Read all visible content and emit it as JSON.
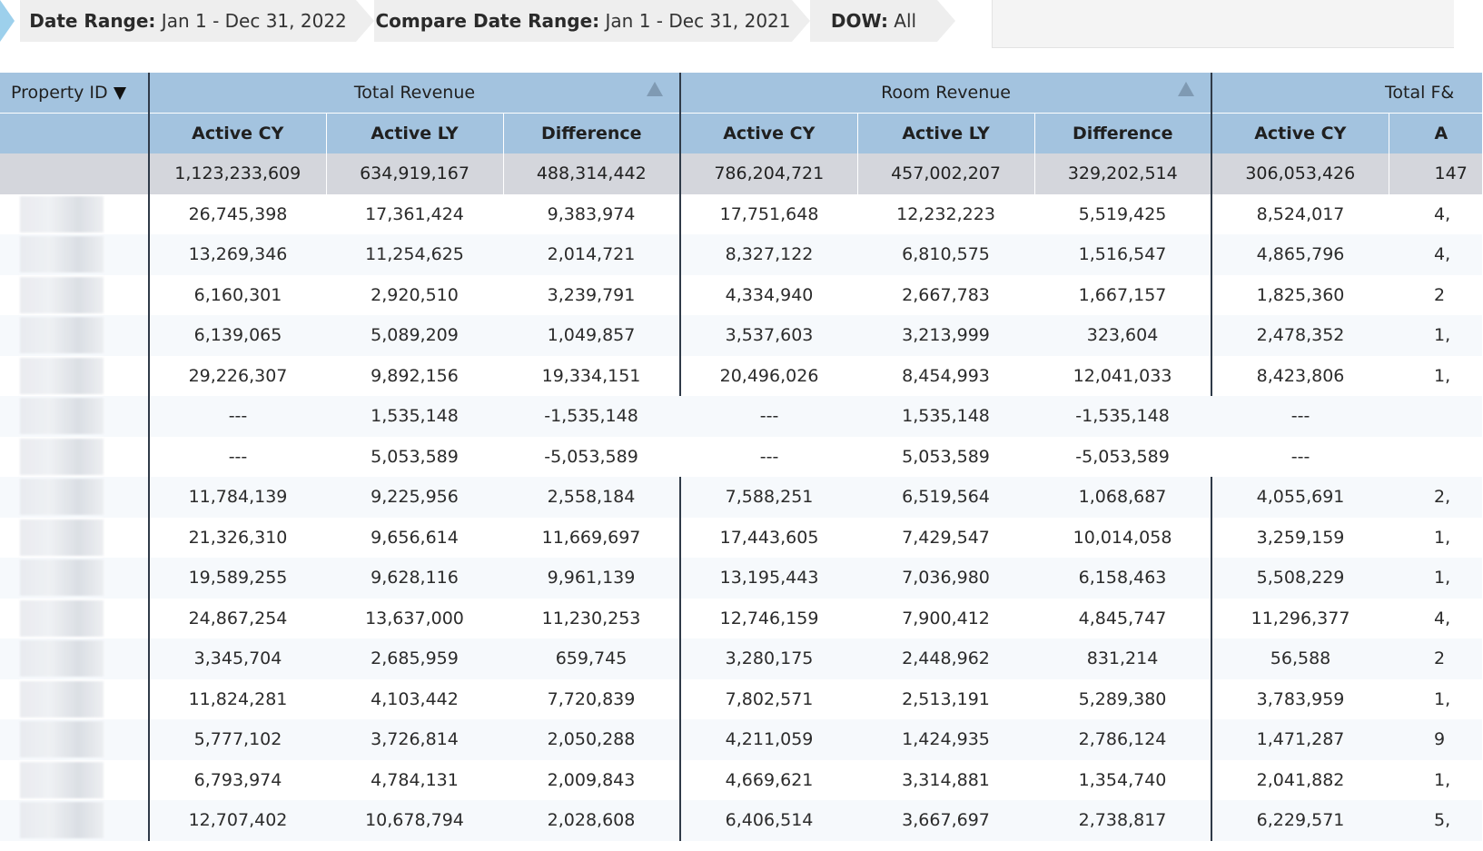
{
  "filters": [
    {
      "label": "Date Range:",
      "value": "Jan 1 - Dec 31, 2022"
    },
    {
      "label": "Compare Date Range:",
      "value": "Jan 1 - Dec 31, 2021"
    },
    {
      "label": "DOW:",
      "value": "All"
    }
  ],
  "table": {
    "property_header": "Property ID",
    "groups": [
      "Total Revenue",
      "Room Revenue",
      "Total F&"
    ],
    "subheaders": [
      "Active CY",
      "Active LY",
      "Difference",
      "Active CY",
      "Active LY",
      "Difference",
      "Active CY",
      "A"
    ],
    "totals": [
      "1,123,233,609",
      "634,919,167",
      "488,314,442",
      "786,204,721",
      "457,002,207",
      "329,202,514",
      "306,053,426",
      "147"
    ],
    "rows": [
      [
        "26,745,398",
        "17,361,424",
        "9,383,974",
        "17,751,648",
        "12,232,223",
        "5,519,425",
        "8,524,017",
        "4,"
      ],
      [
        "13,269,346",
        "11,254,625",
        "2,014,721",
        "8,327,122",
        "6,810,575",
        "1,516,547",
        "4,865,796",
        "4,"
      ],
      [
        "6,160,301",
        "2,920,510",
        "3,239,791",
        "4,334,940",
        "2,667,783",
        "1,667,157",
        "1,825,360",
        "2"
      ],
      [
        "6,139,065",
        "5,089,209",
        "1,049,857",
        "3,537,603",
        "3,213,999",
        "323,604",
        "2,478,352",
        "1,"
      ],
      [
        "29,226,307",
        "9,892,156",
        "19,334,151",
        "20,496,026",
        "8,454,993",
        "12,041,033",
        "8,423,806",
        "1,"
      ],
      [
        "---",
        "1,535,148",
        "-1,535,148",
        "---",
        "1,535,148",
        "-1,535,148",
        "---",
        ""
      ],
      [
        "---",
        "5,053,589",
        "-5,053,589",
        "---",
        "5,053,589",
        "-5,053,589",
        "---",
        ""
      ],
      [
        "11,784,139",
        "9,225,956",
        "2,558,184",
        "7,588,251",
        "6,519,564",
        "1,068,687",
        "4,055,691",
        "2,"
      ],
      [
        "21,326,310",
        "9,656,614",
        "11,669,697",
        "17,443,605",
        "7,429,547",
        "10,014,058",
        "3,259,159",
        "1,"
      ],
      [
        "19,589,255",
        "9,628,116",
        "9,961,139",
        "13,195,443",
        "7,036,980",
        "6,158,463",
        "5,508,229",
        "1,"
      ],
      [
        "24,867,254",
        "13,637,000",
        "11,230,253",
        "12,746,159",
        "7,900,412",
        "4,845,747",
        "11,296,377",
        "4,"
      ],
      [
        "3,345,704",
        "2,685,959",
        "659,745",
        "3,280,175",
        "2,448,962",
        "831,214",
        "56,588",
        "2"
      ],
      [
        "11,824,281",
        "4,103,442",
        "7,720,839",
        "7,802,571",
        "2,513,191",
        "5,289,380",
        "3,783,959",
        "1,"
      ],
      [
        "5,777,102",
        "3,726,814",
        "2,050,288",
        "4,211,059",
        "1,424,935",
        "2,786,124",
        "1,471,287",
        "9"
      ],
      [
        "6,793,974",
        "4,784,131",
        "2,009,843",
        "4,669,621",
        "3,314,881",
        "1,354,740",
        "2,041,882",
        "1,"
      ],
      [
        "12,707,402",
        "10,678,794",
        "2,028,608",
        "6,406,514",
        "3,667,697",
        "2,738,817",
        "6,229,571",
        "5,"
      ]
    ],
    "colors": {
      "header": "#a3c3df",
      "totals": "#d4d6dc",
      "negative": "#c0392b",
      "divider": "#2f3a48"
    }
  }
}
